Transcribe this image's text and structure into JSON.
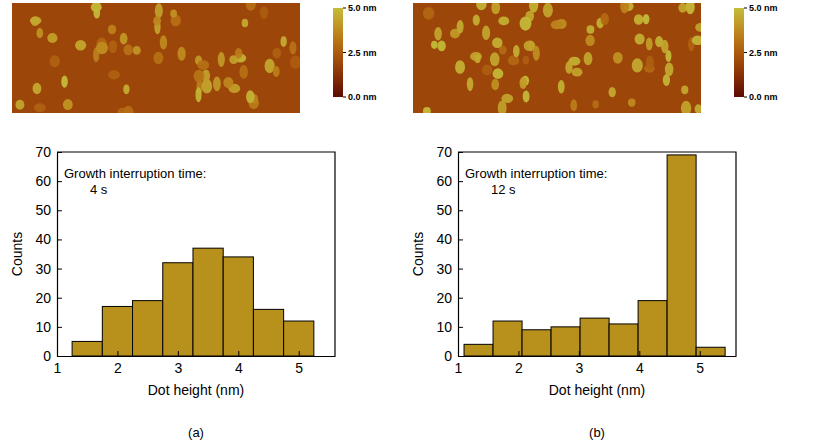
{
  "chart_data": [
    {
      "type": "histogram",
      "annotation": [
        "Growth interruption time:",
        "4 s"
      ],
      "x_label": "Dot height (nm)",
      "y_label": "Counts",
      "caption": "(a)",
      "bins": [
        1.25,
        1.75,
        2.25,
        2.75,
        3.25,
        3.75,
        4.25,
        4.75,
        5.25
      ],
      "values": [
        5,
        17,
        19,
        32,
        37,
        34,
        16,
        12
      ],
      "color": "#b8901c",
      "xlim": [
        1,
        5.6
      ],
      "xticks": [
        1,
        2,
        3,
        4,
        5
      ],
      "ylim": [
        0,
        70
      ],
      "yticks": [
        0,
        10,
        20,
        30,
        40,
        50,
        60,
        70
      ],
      "colorbar": {
        "range": [
          0,
          5
        ],
        "ticks": [
          {
            "value": 5,
            "label": "5.0 nm"
          },
          {
            "value": 2.5,
            "label": "2.5 nm"
          },
          {
            "value": 0,
            "label": "0.0 nm"
          }
        ]
      }
    },
    {
      "type": "histogram",
      "annotation": [
        "Growth interruption time:",
        "12 s"
      ],
      "x_label": "Dot height (nm)",
      "y_label": "Counts",
      "caption": "(b)",
      "bins": [
        1.1,
        1.58,
        2.06,
        2.54,
        3.02,
        3.5,
        3.98,
        4.46,
        4.94,
        5.42
      ],
      "values": [
        4,
        12,
        9,
        10,
        13,
        11,
        19,
        69,
        3
      ],
      "color": "#b8901c",
      "xlim": [
        1,
        5.6
      ],
      "xticks": [
        1,
        2,
        3,
        4,
        5
      ],
      "ylim": [
        0,
        70
      ],
      "yticks": [
        0,
        10,
        20,
        30,
        40,
        50,
        60,
        70
      ],
      "colorbar": {
        "range": [
          0,
          5
        ],
        "ticks": [
          {
            "value": 5,
            "label": "5.0 nm"
          },
          {
            "value": 2.5,
            "label": "2.5 nm"
          },
          {
            "value": 0,
            "label": "0.0 nm"
          }
        ]
      }
    }
  ]
}
